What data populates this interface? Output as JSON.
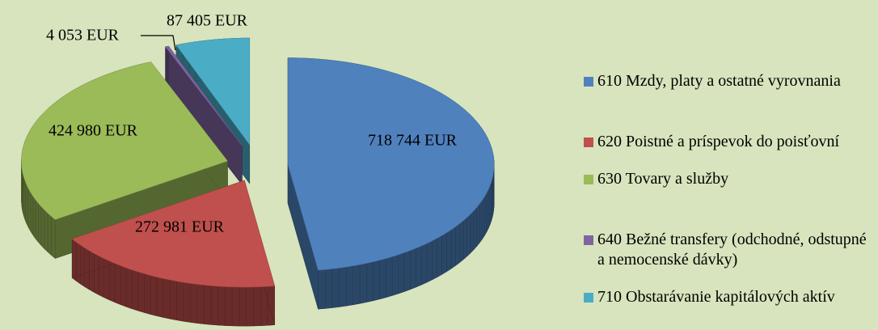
{
  "chart_data": {
    "type": "pie",
    "categories": [
      "610 Mzdy, platy a ostatné vyrovnania",
      "620 Poistné a príspevok do poisťovní",
      "630 Tovary a služby",
      "640 Bežné transfery (odchodné, odstupné a nemocenské dávky)",
      "710 Obstarávanie kapitálových aktív"
    ],
    "values": [
      718744,
      272981,
      424980,
      4053,
      87405
    ],
    "value_labels": [
      "718 744 EUR",
      "272 981 EUR",
      "424 980 EUR",
      "4 053 EUR",
      "87 405 EUR"
    ],
    "colors": [
      "#4f81bd",
      "#c0504d",
      "#9bbb59",
      "#8064a2",
      "#4bacc6"
    ],
    "legend": "right"
  }
}
